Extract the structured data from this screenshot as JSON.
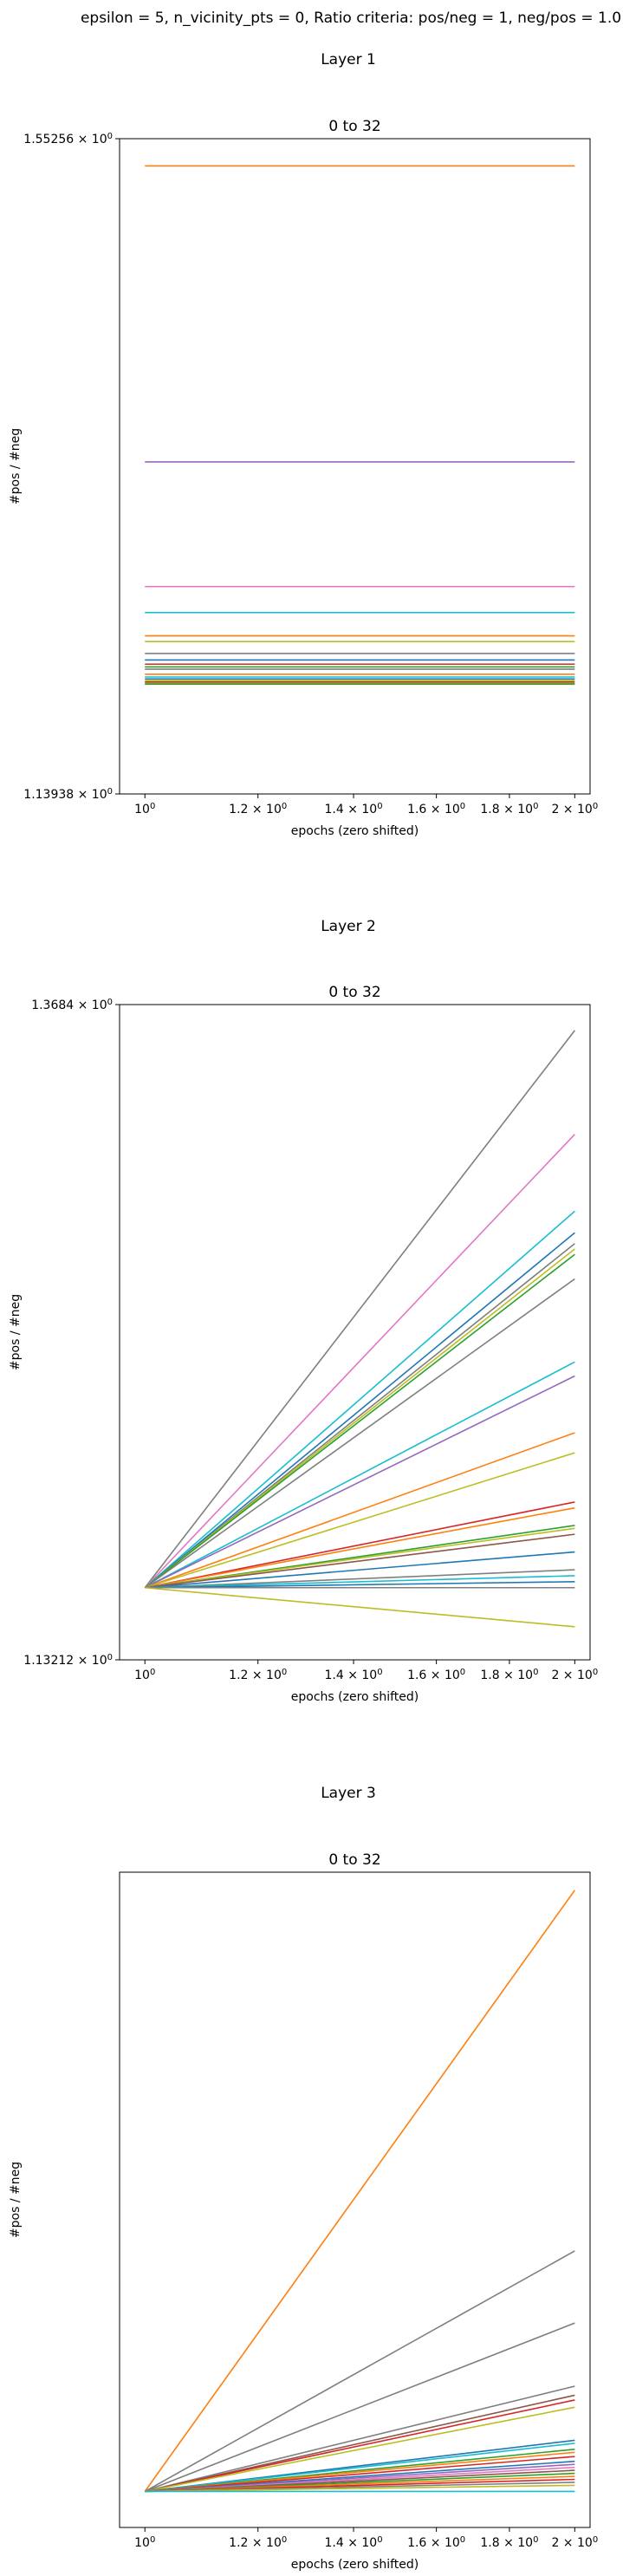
{
  "suptitle": "epsilon = 5, n_vicinity_pts = 0, Ratio criteria: pos/neg = 1, neg/pos = 1.0",
  "chart_data": [
    {
      "type": "line",
      "layer_label": "Layer 1",
      "title": "0 to 32",
      "xlabel": "epochs (zero shifted)",
      "ylabel": "#pos / #neg",
      "xscale": "log",
      "yscale": "log",
      "xlim": [
        0.96,
        2.05
      ],
      "ylim": [
        1.13938,
        1.55256
      ],
      "x_ticks": [
        {
          "value": 1.0,
          "base": "10",
          "exp": "0"
        },
        {
          "value": 1.2,
          "base": "1.2 × 10",
          "exp": "0"
        },
        {
          "value": 1.4,
          "base": "1.4 × 10",
          "exp": "0"
        },
        {
          "value": 1.6,
          "base": "1.6 × 10",
          "exp": "0"
        },
        {
          "value": 1.8,
          "base": "1.8 × 10",
          "exp": "0"
        },
        {
          "value": 2.0,
          "base": "2 × 10",
          "exp": "0"
        }
      ],
      "y_ticks": [
        {
          "value": 1.55256,
          "base": "1.55256 × 10",
          "exp": "0"
        },
        {
          "value": 1.13938,
          "base": "1.13938 × 10",
          "exp": "0"
        }
      ],
      "series": [
        {
          "color": "#ff7f0e",
          "x": [
            1,
            2
          ],
          "y": [
            1.5327,
            1.5327
          ]
        },
        {
          "color": "#9467bd",
          "x": [
            1,
            2
          ],
          "y": [
            1.3328,
            1.3328
          ]
        },
        {
          "color": "#e377c2",
          "x": [
            1,
            2
          ],
          "y": [
            1.2566,
            1.2566
          ]
        },
        {
          "color": "#17becf",
          "x": [
            1,
            2
          ],
          "y": [
            1.2413,
            1.2413
          ]
        },
        {
          "color": "#ff7f0e",
          "x": [
            1,
            2
          ],
          "y": [
            1.2277,
            1.2277
          ]
        },
        {
          "color": "#bcbd22",
          "x": [
            1,
            2
          ],
          "y": [
            1.2244,
            1.2244
          ]
        },
        {
          "color": "#7f7f7f",
          "x": [
            1,
            2
          ],
          "y": [
            1.2175,
            1.2175
          ]
        },
        {
          "color": "#1f77b4",
          "x": [
            1,
            2
          ],
          "y": [
            1.2138,
            1.2138
          ]
        },
        {
          "color": "#d62728",
          "x": [
            1,
            2
          ],
          "y": [
            1.2114,
            1.2114
          ]
        },
        {
          "color": "#2ca02c",
          "x": [
            1,
            2
          ],
          "y": [
            1.2098,
            1.2098
          ]
        },
        {
          "color": "#7f7f7f",
          "x": [
            1,
            2
          ],
          "y": [
            1.2085,
            1.2085
          ]
        },
        {
          "color": "#ff7f0e",
          "x": [
            1,
            2
          ],
          "y": [
            1.2056,
            1.2056
          ]
        },
        {
          "color": "#17becf",
          "x": [
            1,
            2
          ],
          "y": [
            1.2041,
            1.2041
          ]
        },
        {
          "color": "#1f77b4",
          "x": [
            1,
            2
          ],
          "y": [
            1.203,
            1.203
          ]
        },
        {
          "color": "#bcbd22",
          "x": [
            1,
            2
          ],
          "y": [
            1.2021,
            1.2021
          ]
        },
        {
          "color": "#8c564b",
          "x": [
            1,
            2
          ],
          "y": [
            1.2013,
            1.2013
          ]
        },
        {
          "color": "#ff7f0e",
          "x": [
            1,
            2
          ],
          "y": [
            1.2006,
            1.2006
          ]
        },
        {
          "color": "#2ca02c",
          "x": [
            1,
            2
          ],
          "y": [
            1.2,
            1.2
          ]
        }
      ]
    },
    {
      "type": "line",
      "layer_label": "Layer 2",
      "title": "0 to 32",
      "xlabel": "epochs (zero shifted)",
      "ylabel": "#pos / #neg",
      "xscale": "log",
      "yscale": "log",
      "xlim": [
        0.96,
        2.05
      ],
      "ylim": [
        1.13212,
        1.3684
      ],
      "x_ticks": [
        {
          "value": 1.0,
          "base": "10",
          "exp": "0"
        },
        {
          "value": 1.2,
          "base": "1.2 × 10",
          "exp": "0"
        },
        {
          "value": 1.4,
          "base": "1.4 × 10",
          "exp": "0"
        },
        {
          "value": 1.6,
          "base": "1.6 × 10",
          "exp": "0"
        },
        {
          "value": 1.8,
          "base": "1.8 × 10",
          "exp": "0"
        },
        {
          "value": 2.0,
          "base": "2 × 10",
          "exp": "0"
        }
      ],
      "y_ticks": [
        {
          "value": 1.3684,
          "base": "1.3684 × 10",
          "exp": "0"
        },
        {
          "value": 1.13212,
          "base": "1.13212 × 10",
          "exp": "0"
        }
      ],
      "series": [
        {
          "color": "#7f7f7f",
          "x": [
            1,
            2
          ],
          "y": [
            1.156,
            1.3582
          ]
        },
        {
          "color": "#e377c2",
          "x": [
            1,
            2
          ],
          "y": [
            1.156,
            1.318
          ]
        },
        {
          "color": "#17becf",
          "x": [
            1,
            2
          ],
          "y": [
            1.156,
            1.289
          ]
        },
        {
          "color": "#1f77b4",
          "x": [
            1,
            2
          ],
          "y": [
            1.156,
            1.281
          ]
        },
        {
          "color": "#7f7f7f",
          "x": [
            1,
            2
          ],
          "y": [
            1.156,
            1.277
          ]
        },
        {
          "color": "#bcbd22",
          "x": [
            1,
            2
          ],
          "y": [
            1.156,
            1.275
          ]
        },
        {
          "color": "#2ca02c",
          "x": [
            1,
            2
          ],
          "y": [
            1.156,
            1.273
          ]
        },
        {
          "color": "#7f7f7f",
          "x": [
            1,
            2
          ],
          "y": [
            1.156,
            1.264
          ]
        },
        {
          "color": "#17becf",
          "x": [
            1,
            2
          ],
          "y": [
            1.156,
            1.234
          ]
        },
        {
          "color": "#9467bd",
          "x": [
            1,
            2
          ],
          "y": [
            1.156,
            1.229
          ]
        },
        {
          "color": "#ff7f0e",
          "x": [
            1,
            2
          ],
          "y": [
            1.156,
            1.209
          ]
        },
        {
          "color": "#bcbd22",
          "x": [
            1,
            2
          ],
          "y": [
            1.156,
            1.202
          ]
        },
        {
          "color": "#d62728",
          "x": [
            1,
            2
          ],
          "y": [
            1.156,
            1.185
          ]
        },
        {
          "color": "#ff7f0e",
          "x": [
            1,
            2
          ],
          "y": [
            1.156,
            1.183
          ]
        },
        {
          "color": "#2ca02c",
          "x": [
            1,
            2
          ],
          "y": [
            1.156,
            1.177
          ]
        },
        {
          "color": "#bcbd22",
          "x": [
            1,
            2
          ],
          "y": [
            1.156,
            1.176
          ]
        },
        {
          "color": "#8c564b",
          "x": [
            1,
            2
          ],
          "y": [
            1.156,
            1.174
          ]
        },
        {
          "color": "#1f77b4",
          "x": [
            1,
            2
          ],
          "y": [
            1.156,
            1.168
          ]
        },
        {
          "color": "#7f7f7f",
          "x": [
            1,
            2
          ],
          "y": [
            1.156,
            1.162
          ]
        },
        {
          "color": "#17becf",
          "x": [
            1,
            2
          ],
          "y": [
            1.156,
            1.16
          ]
        },
        {
          "color": "#1f77b4",
          "x": [
            1,
            2
          ],
          "y": [
            1.156,
            1.158
          ]
        },
        {
          "color": "#7f7f7f",
          "x": [
            1,
            2
          ],
          "y": [
            1.156,
            1.156
          ]
        },
        {
          "color": "#bcbd22",
          "x": [
            1,
            2
          ],
          "y": [
            1.156,
            1.143
          ]
        }
      ]
    },
    {
      "type": "line",
      "layer_label": "Layer 3",
      "title": "0 to 32",
      "xlabel": "epochs (zero shifted)",
      "ylabel": "#pos / #neg",
      "xscale": "log",
      "yscale": "linear",
      "xlim": [
        0.96,
        2.05
      ],
      "ylim": [
        -0.06,
        1.03
      ],
      "x_ticks": [
        {
          "value": 1.0,
          "base": "10",
          "exp": "0"
        },
        {
          "value": 1.2,
          "base": "1.2 × 10",
          "exp": "0"
        },
        {
          "value": 1.4,
          "base": "1.4 × 10",
          "exp": "0"
        },
        {
          "value": 1.6,
          "base": "1.6 × 10",
          "exp": "0"
        },
        {
          "value": 1.8,
          "base": "1.8 × 10",
          "exp": "0"
        },
        {
          "value": 2.0,
          "base": "2 × 10",
          "exp": "0"
        }
      ],
      "y_ticks": [],
      "series": [
        {
          "color": "#ff7f0e",
          "x": [
            1,
            2
          ],
          "y": [
            0,
            1.0
          ]
        },
        {
          "color": "#7f7f7f",
          "x": [
            1,
            2
          ],
          "y": [
            0,
            0.4
          ]
        },
        {
          "color": "#7f7f7f",
          "x": [
            1,
            2
          ],
          "y": [
            0,
            0.28
          ]
        },
        {
          "color": "#7f7f7f",
          "x": [
            1,
            2
          ],
          "y": [
            0,
            0.175
          ]
        },
        {
          "color": "#8c564b",
          "x": [
            1,
            2
          ],
          "y": [
            0,
            0.16
          ]
        },
        {
          "color": "#d62728",
          "x": [
            1,
            2
          ],
          "y": [
            0,
            0.152
          ]
        },
        {
          "color": "#bcbd22",
          "x": [
            1,
            2
          ],
          "y": [
            0,
            0.14
          ]
        },
        {
          "color": "#1f77b4",
          "x": [
            1,
            2
          ],
          "y": [
            0,
            0.085
          ]
        },
        {
          "color": "#17becf",
          "x": [
            1,
            2
          ],
          "y": [
            0,
            0.08
          ]
        },
        {
          "color": "#2ca02c",
          "x": [
            1,
            2
          ],
          "y": [
            0,
            0.07
          ]
        },
        {
          "color": "#ff7f0e",
          "x": [
            1,
            2
          ],
          "y": [
            0,
            0.065
          ]
        },
        {
          "color": "#d62728",
          "x": [
            1,
            2
          ],
          "y": [
            0,
            0.058
          ]
        },
        {
          "color": "#1f77b4",
          "x": [
            1,
            2
          ],
          "y": [
            0,
            0.05
          ]
        },
        {
          "color": "#9467bd",
          "x": [
            1,
            2
          ],
          "y": [
            0,
            0.045
          ]
        },
        {
          "color": "#e377c2",
          "x": [
            1,
            2
          ],
          "y": [
            0,
            0.04
          ]
        },
        {
          "color": "#8c564b",
          "x": [
            1,
            2
          ],
          "y": [
            0,
            0.035
          ]
        },
        {
          "color": "#2ca02c",
          "x": [
            1,
            2
          ],
          "y": [
            0,
            0.03
          ]
        },
        {
          "color": "#ff7f0e",
          "x": [
            1,
            2
          ],
          "y": [
            0,
            0.025
          ]
        },
        {
          "color": "#d62728",
          "x": [
            1,
            2
          ],
          "y": [
            0,
            0.02
          ]
        },
        {
          "color": "#7f7f7f",
          "x": [
            1,
            2
          ],
          "y": [
            0,
            0.015
          ]
        },
        {
          "color": "#bcbd22",
          "x": [
            1,
            2
          ],
          "y": [
            0,
            0.01
          ]
        },
        {
          "color": "#17becf",
          "x": [
            1,
            2
          ],
          "y": [
            0,
            0.0
          ]
        }
      ]
    }
  ]
}
